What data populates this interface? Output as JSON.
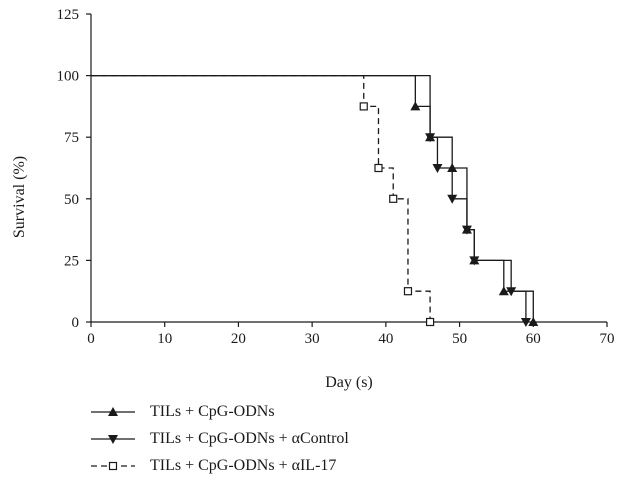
{
  "chart_data": {
    "type": "line",
    "subtype": "kaplan-meier step survival curves",
    "xlabel": "Day (s)",
    "ylabel": "Survival (%)",
    "xlim": [
      0,
      70
    ],
    "ylim": [
      0,
      125
    ],
    "xticks": [
      "0",
      "10",
      "20",
      "30",
      "40",
      "50",
      "60",
      "70"
    ],
    "yticks": [
      "0",
      "25",
      "50",
      "75",
      "100",
      "125"
    ],
    "grid": false,
    "legend_position": "below",
    "series": [
      {
        "name": "TILs + CpG-ODNs",
        "marker": "triangle-up-filled",
        "line_style": "solid",
        "color": "#1a1a1a",
        "steps": [
          [
            0,
            100
          ],
          [
            44,
            87.5
          ],
          [
            46,
            75
          ],
          [
            49,
            62.5
          ],
          [
            51,
            37.5
          ],
          [
            52,
            25
          ],
          [
            56,
            12.5
          ],
          [
            60,
            0
          ]
        ]
      },
      {
        "name": "TILs + CpG-ODNs + αControl",
        "marker": "triangle-down-filled",
        "line_style": "solid",
        "color": "#1a1a1a",
        "steps": [
          [
            0,
            100
          ],
          [
            46,
            75
          ],
          [
            47,
            62.5
          ],
          [
            49,
            50
          ],
          [
            51,
            37.5
          ],
          [
            52,
            25
          ],
          [
            57,
            12.5
          ],
          [
            59,
            0
          ]
        ]
      },
      {
        "name": "TILs + CpG-ODNs + αIL-17",
        "marker": "square-open",
        "line_style": "dashed",
        "color": "#1a1a1a",
        "steps": [
          [
            0,
            100
          ],
          [
            37,
            87.5
          ],
          [
            39,
            62.5
          ],
          [
            41,
            50
          ],
          [
            43,
            12.5
          ],
          [
            46,
            0
          ]
        ]
      }
    ]
  }
}
